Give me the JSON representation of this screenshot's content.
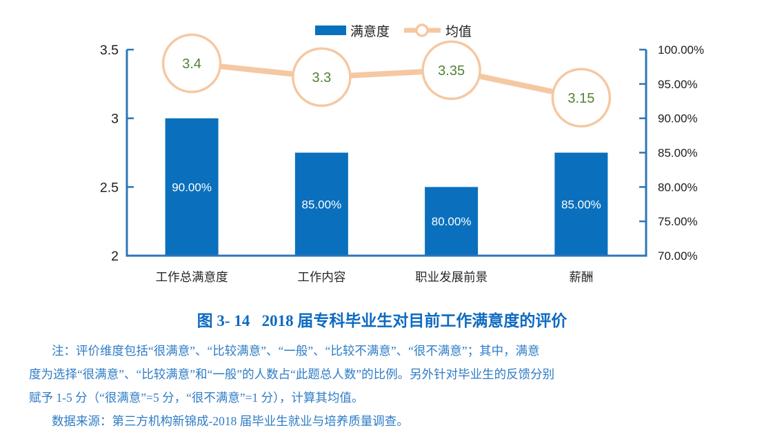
{
  "chart_data": {
    "type": "bar+line combo",
    "categories": [
      "工作总满意度",
      "工作内容",
      "职业发展前景",
      "薪酬"
    ],
    "series": [
      {
        "name": "满意度",
        "type": "bar",
        "axis": "right",
        "values": [
          90,
          85,
          80,
          85
        ],
        "labels": [
          "90.00%",
          "85.00%",
          "80.00%",
          "85.00%"
        ],
        "color": "#0A70BD",
        "label_color": "#ffffff"
      },
      {
        "name": "均值",
        "type": "line",
        "axis": "left",
        "values": [
          3.4,
          3.3,
          3.35,
          3.15
        ],
        "labels": [
          "3.4",
          "3.3",
          "3.35",
          "3.15"
        ],
        "color": "#F5C8A2",
        "label_color": "#538135"
      }
    ],
    "left_axis": {
      "min": 2,
      "max": 3.5,
      "ticks": [
        3.5,
        3,
        2.5,
        2
      ],
      "tick_labels": [
        "3.5",
        "3",
        "2.5",
        "2"
      ]
    },
    "right_axis": {
      "min": 70,
      "max": 100,
      "ticks": [
        100,
        95,
        90,
        85,
        80,
        75,
        70
      ],
      "tick_labels": [
        "100.00%",
        "95.00%",
        "90.00%",
        "85.00%",
        "80.00%",
        "75.00%",
        "70.00%"
      ]
    },
    "axis_color": "#2E75B6",
    "tick_label_color": "#1d1d1d",
    "grid": false,
    "legend": {
      "position": "top",
      "items": [
        {
          "label": "满意度",
          "swatch": "bar"
        },
        {
          "label": "均值",
          "swatch": "line"
        }
      ]
    }
  },
  "caption": {
    "title": "图 3- 14   2018 届专科毕业生对目前工作满意度的评价",
    "color": "#0E6AC0"
  },
  "notes": {
    "color": "#2E7CC6",
    "lines": [
      "注：评价维度包括“很满意”、“比较满意”、“一般”、“比较不满意”、“很不满意”；其中，满意",
      "度为选择“很满意”、“比较满意”和“一般”的人数占“此题总人数”的比例。另外针对毕业生的反馈分别",
      "赋予 1-5 分（“很满意”=5 分，“很不满意”=1 分），计算其均值。",
      "数据来源：第三方机构新锦成-2018 届毕业生就业与培养质量调查。"
    ]
  }
}
